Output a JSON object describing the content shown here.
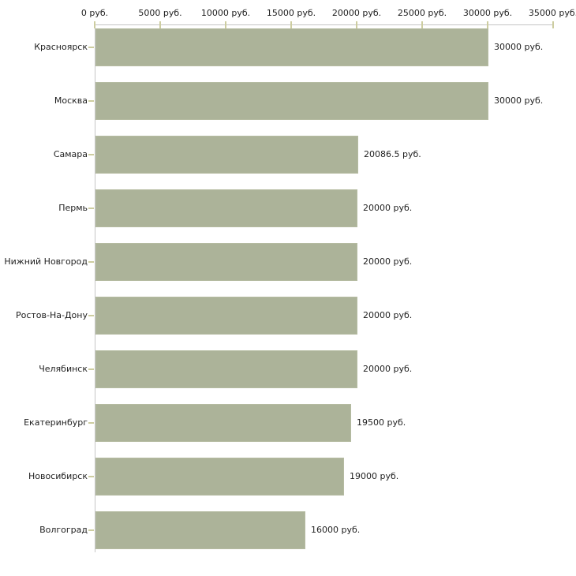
{
  "chart_data": {
    "type": "bar",
    "orientation": "horizontal",
    "title": "",
    "categories": [
      "Красноярск",
      "Москва",
      "Самара",
      "Пермь",
      "Нижний Новгород",
      "Ростов-На-Дону",
      "Челябинск",
      "Екатеринбург",
      "Новосибирск",
      "Волгоград"
    ],
    "values": [
      30000,
      30000,
      20086.5,
      20000,
      20000,
      20000,
      20000,
      19500,
      19000,
      16000
    ],
    "value_labels": [
      "30000 руб.",
      "30000 руб.",
      "20086.5 руб.",
      "20000 руб.",
      "20000 руб.",
      "20000 руб.",
      "20000 руб.",
      "19500 руб.",
      "19000 руб.",
      "16000 руб."
    ],
    "unit": "руб.",
    "x_axis": {
      "position": "top",
      "min": 0,
      "max": 35000,
      "ticks": [
        0,
        5000,
        10000,
        15000,
        20000,
        25000,
        30000,
        35000
      ],
      "tick_labels": [
        "0 руб.",
        "5000 руб.",
        "10000 руб.",
        "15000 руб.",
        "20000 руб.",
        "25000 руб.",
        "30000 руб.",
        "35000 руб."
      ]
    },
    "grid": false,
    "legend": false
  },
  "colors": {
    "background": "#ffffff",
    "bar_fill": "#acb399",
    "bar_edge": "#b5bba1",
    "axis_line": "#c5c5c5",
    "tick_mark": "#cdcda0",
    "text": "#1f1f1f"
  }
}
